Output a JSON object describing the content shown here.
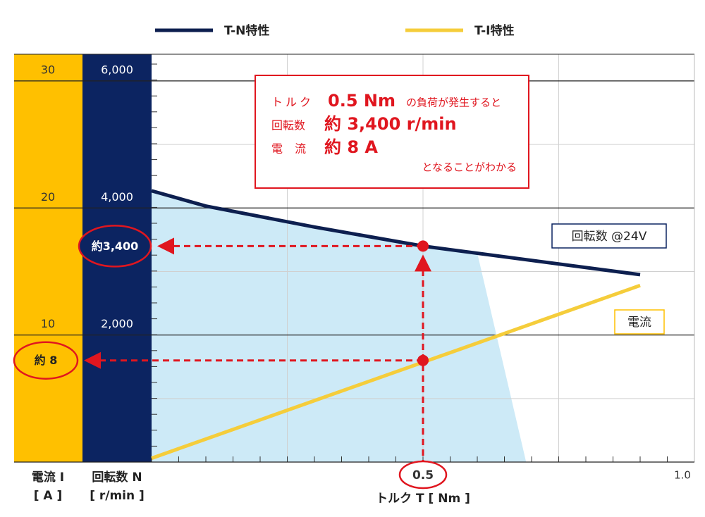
{
  "chart_data": {
    "type": "line",
    "legend": "top",
    "series": [
      {
        "name": "T-N特性",
        "color": "#0d1f4f",
        "x": [
          0,
          0.1,
          0.3,
          0.5,
          0.9
        ],
        "values": [
          4270,
          4030,
          3700,
          3400,
          2950
        ],
        "label": "回転数 @24V"
      },
      {
        "name": "T-I特性",
        "color": "#f5cd3b",
        "axis": "y2",
        "x": [
          0,
          0.9
        ],
        "values": [
          0.3,
          13.9
        ],
        "label": "電流"
      }
    ],
    "area": {
      "color": "#cdeaf7",
      "x": [
        0,
        0.1,
        0.3,
        0.6,
        0.69
      ],
      "values": [
        4270,
        4030,
        3700,
        3290,
        0
      ]
    },
    "x_label": "トルク T [ Nm ]",
    "y_label": [
      "回転数 N",
      "[ r/min ]"
    ],
    "y2_label": [
      "電流 I",
      "[ A ]"
    ],
    "xlim": [
      0,
      1
    ],
    "ylim": [
      0,
      6420
    ],
    "y2lim": [
      0,
      32.1
    ],
    "xticks": [
      0.5,
      {
        "value": 1,
        "label": "1.0"
      }
    ],
    "x_grid": [
      0.25,
      0.5,
      0.75
    ],
    "yticks": [
      {
        "value": 2000,
        "label": "2,000"
      },
      {
        "value": 4000,
        "label": "4,000"
      },
      {
        "value": 6000,
        "label": "6,000"
      }
    ],
    "y_minor_grid": [
      1000,
      3000,
      5000
    ],
    "y2ticks": [
      10,
      20,
      30
    ],
    "markers": [
      {
        "x": 0.5,
        "y": 3400,
        "label": "約3,400"
      },
      {
        "x": 0.5,
        "y2": 8,
        "label": "約 8"
      }
    ],
    "callout": [
      [
        "トルク",
        "0.5 Nm",
        "の負荷が発生すると"
      ],
      [
        "回転数",
        "約 3,400 r/min"
      ],
      [
        "電 流",
        "約 8 A"
      ],
      [
        "となることがわかる"
      ]
    ]
  }
}
